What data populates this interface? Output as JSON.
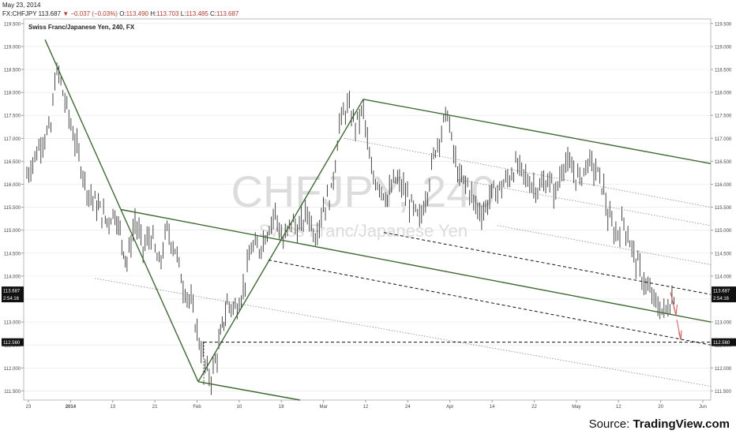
{
  "header": {
    "date": "May 23, 2014",
    "symbol": "FX:CHFJPY",
    "last": "113.687",
    "change": "−0.037 (−0.03%)",
    "open_label": "O:",
    "open": "113.490",
    "high_label": "H:",
    "high": "113.703",
    "low_label": "L:",
    "low": "113.485",
    "close_label": "C:",
    "close": "113.687"
  },
  "chart_data": {
    "type": "candlestick",
    "title": "Swiss Franc/Japanese Yen, 240, FX",
    "watermark_symbol": "CHFJPY, 240",
    "watermark_name": "Swiss Franc/Japanese Yen",
    "x_tick_labels": [
      "23",
      "2014",
      "13",
      "21",
      "Feb",
      "10",
      "18",
      "Mar",
      "12",
      "24",
      "Apr",
      "14",
      "22",
      "May",
      "12",
      "20",
      "Jun"
    ],
    "y_tick_labels": [
      "119.500",
      "119.000",
      "118.500",
      "118.000",
      "117.500",
      "117.000",
      "116.500",
      "116.000",
      "115.500",
      "115.000",
      "114.500",
      "114.000",
      "113.500",
      "113.000",
      "112.500",
      "112.000",
      "111.500"
    ],
    "ylim": [
      111.3,
      119.6
    ],
    "price_markers": [
      {
        "label": "113.687",
        "sub": "2:54:16",
        "value": 113.687
      },
      {
        "label": "112.560",
        "value": 112.56
      }
    ],
    "approx_price_path": [
      {
        "t": 0,
        "p": 116.2
      },
      {
        "t": 2,
        "p": 116.6
      },
      {
        "t": 4,
        "p": 117.0
      },
      {
        "t": 6,
        "p": 117.2
      },
      {
        "t": 7,
        "p": 118.3
      },
      {
        "t": 8,
        "p": 118.4
      },
      {
        "t": 9.5,
        "p": 117.8
      },
      {
        "t": 11,
        "p": 117.3
      },
      {
        "t": 13,
        "p": 116.6
      },
      {
        "t": 15,
        "p": 115.9
      },
      {
        "t": 17,
        "p": 115.6
      },
      {
        "t": 20,
        "p": 115.2
      },
      {
        "t": 22,
        "p": 115.4
      },
      {
        "t": 25,
        "p": 114.3
      },
      {
        "t": 27,
        "p": 115.2
      },
      {
        "t": 29,
        "p": 114.6
      },
      {
        "t": 31,
        "p": 114.9
      },
      {
        "t": 33,
        "p": 114.2
      },
      {
        "t": 35,
        "p": 115.0
      },
      {
        "t": 37,
        "p": 114.6
      },
      {
        "t": 39,
        "p": 113.8
      },
      {
        "t": 41,
        "p": 113.4
      },
      {
        "t": 43,
        "p": 112.6
      },
      {
        "t": 45,
        "p": 111.9
      },
      {
        "t": 46,
        "p": 111.8
      },
      {
        "t": 47.5,
        "p": 112.3
      },
      {
        "t": 50,
        "p": 113.4
      },
      {
        "t": 52,
        "p": 113.3
      },
      {
        "t": 54,
        "p": 113.7
      },
      {
        "t": 56,
        "p": 114.6
      },
      {
        "t": 58,
        "p": 114.6
      },
      {
        "t": 60,
        "p": 115.0
      },
      {
        "t": 62,
        "p": 115.4
      },
      {
        "t": 64,
        "p": 114.7
      },
      {
        "t": 66,
        "p": 115.2
      },
      {
        "t": 68,
        "p": 115.0
      },
      {
        "t": 70,
        "p": 115.4
      },
      {
        "t": 72,
        "p": 114.9
      },
      {
        "t": 74,
        "p": 115.5
      },
      {
        "t": 76,
        "p": 115.8
      },
      {
        "t": 78,
        "p": 117.3
      },
      {
        "t": 80,
        "p": 117.7
      },
      {
        "t": 82,
        "p": 117.3
      },
      {
        "t": 84,
        "p": 117.6
      },
      {
        "t": 86,
        "p": 116.2
      },
      {
        "t": 88,
        "p": 116.0
      },
      {
        "t": 90,
        "p": 115.7
      },
      {
        "t": 92,
        "p": 116.1
      },
      {
        "t": 94,
        "p": 115.9
      },
      {
        "t": 96,
        "p": 115.5
      },
      {
        "t": 98,
        "p": 115.2
      },
      {
        "t": 100,
        "p": 115.9
      },
      {
        "t": 102,
        "p": 116.8
      },
      {
        "t": 104,
        "p": 117.3
      },
      {
        "t": 105,
        "p": 117.6
      },
      {
        "t": 106,
        "p": 116.9
      },
      {
        "t": 108,
        "p": 116.1
      },
      {
        "t": 110,
        "p": 116.0
      },
      {
        "t": 112,
        "p": 115.5
      },
      {
        "t": 114,
        "p": 115.4
      },
      {
        "t": 116,
        "p": 115.8
      },
      {
        "t": 118,
        "p": 115.9
      },
      {
        "t": 120,
        "p": 116.1
      },
      {
        "t": 122,
        "p": 116.4
      },
      {
        "t": 124,
        "p": 116.2
      },
      {
        "t": 126,
        "p": 116.0
      },
      {
        "t": 128,
        "p": 115.9
      },
      {
        "t": 130,
        "p": 116.1
      },
      {
        "t": 132,
        "p": 115.8
      },
      {
        "t": 134,
        "p": 116.5
      },
      {
        "t": 136,
        "p": 116.3
      },
      {
        "t": 138,
        "p": 116.1
      },
      {
        "t": 140,
        "p": 116.5
      },
      {
        "t": 142,
        "p": 116.3
      },
      {
        "t": 144,
        "p": 115.9
      },
      {
        "t": 145,
        "p": 115.3
      },
      {
        "t": 147,
        "p": 114.9
      },
      {
        "t": 149,
        "p": 115.2
      },
      {
        "t": 151,
        "p": 114.6
      },
      {
        "t": 153,
        "p": 114.1
      },
      {
        "t": 155,
        "p": 113.7
      },
      {
        "t": 157,
        "p": 113.4
      },
      {
        "t": 159,
        "p": 113.2
      },
      {
        "t": 161,
        "p": 113.5
      },
      {
        "t": 162,
        "p": 113.687
      }
    ]
  },
  "colors": {
    "channel_line": "#3d6b2f",
    "dashed_line": "#111111",
    "dotted_line": "#888888",
    "bar": "#333333",
    "arrow": "#e05050",
    "grid": "#e4e4e4",
    "watermark": "#dcdcdc"
  },
  "footer": {
    "source_prefix": "Source: ",
    "source_name": "TradingView.com"
  }
}
